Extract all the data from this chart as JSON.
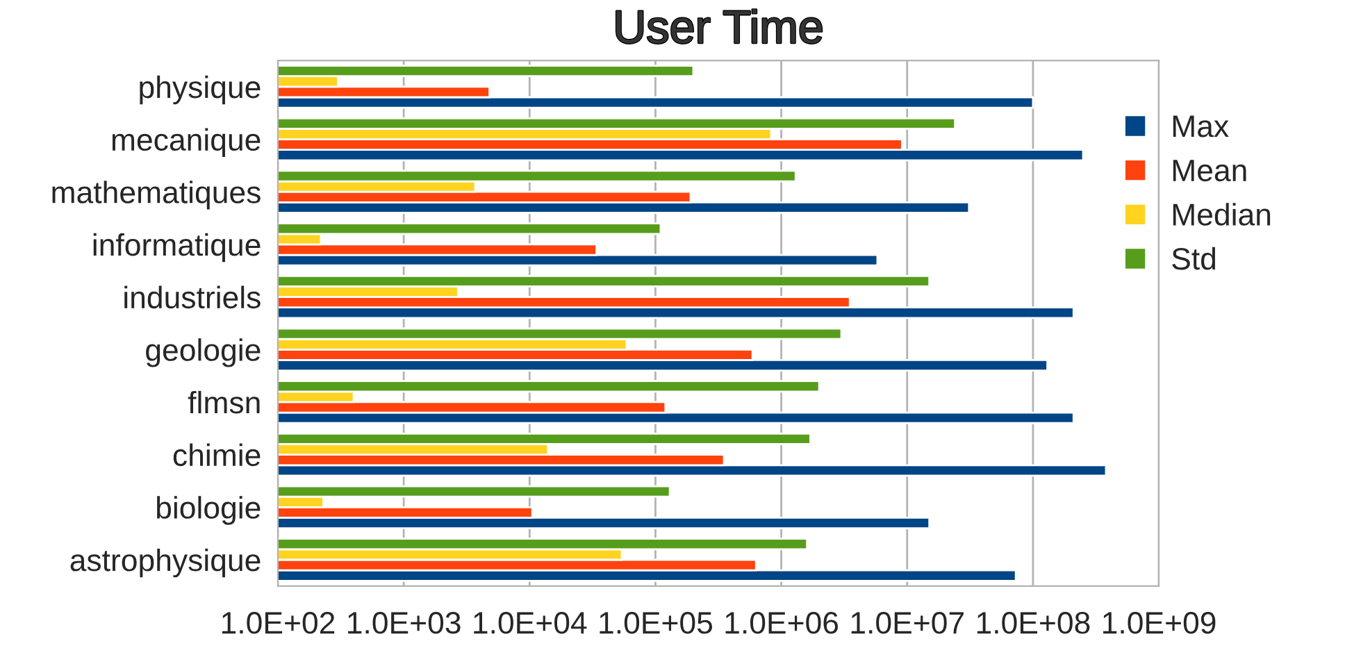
{
  "chart_data": {
    "type": "bar",
    "orientation": "horizontal",
    "title": "User Time",
    "log": "x",
    "categories": [
      "physique",
      "mecanique",
      "mathematiques",
      "informatique",
      "industriels",
      "geologie",
      "flmsn",
      "chimie",
      "biologie",
      "astrophysique"
    ],
    "series": [
      {
        "name": "Max",
        "color": "#004586",
        "values": [
          100000000.0,
          250000000.0,
          31000000.0,
          5800000.0,
          210000000.0,
          130000000.0,
          210000000.0,
          380000000.0,
          15000000.0,
          73000000.0
        ]
      },
      {
        "name": "Mean",
        "color": "#ff420e",
        "values": [
          4800,
          9100000.0,
          190000.0,
          34000.0,
          3500000.0,
          590000.0,
          120000.0,
          350000.0,
          10500.0,
          630000.0
        ]
      },
      {
        "name": "Median",
        "color": "#ffd320",
        "values": [
          300,
          830000.0,
          3700,
          220,
          2700,
          59000.0,
          400,
          14000.0,
          230,
          54000.0
        ]
      },
      {
        "name": "Std",
        "color": "#579d1c",
        "values": [
          200000.0,
          24000000.0,
          1300000.0,
          110000.0,
          15000000.0,
          3000000.0,
          2000000.0,
          1700000.0,
          130000.0,
          1600000.0
        ]
      }
    ],
    "xlim": [
      100,
      1000000000.0
    ],
    "xticks": [
      {
        "value": 100,
        "label": "1.0E+02"
      },
      {
        "value": 1000,
        "label": "1.0E+03"
      },
      {
        "value": 10000,
        "label": "1.0E+04"
      },
      {
        "value": 100000,
        "label": "1.0E+05"
      },
      {
        "value": 1000000,
        "label": "1.0E+06"
      },
      {
        "value": 10000000,
        "label": "1.0E+07"
      },
      {
        "value": 100000000,
        "label": "1.0E+08"
      },
      {
        "value": 1000000000,
        "label": "1.0E+09"
      }
    ],
    "grid": "x",
    "legend": "top right"
  }
}
